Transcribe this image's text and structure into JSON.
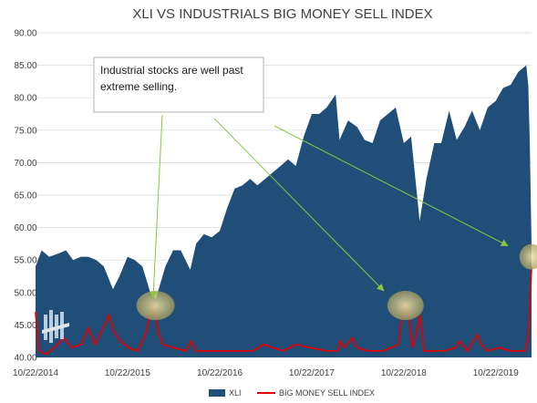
{
  "chart_data": {
    "type": "area",
    "title": "XLI VS INDUSTRIALS BIG MONEY SELL INDEX",
    "xlabel": "",
    "ylabel": "",
    "ylim": [
      40,
      90
    ],
    "y_ticks": [
      "40.00",
      "45.00",
      "50.00",
      "55.00",
      "60.00",
      "65.00",
      "70.00",
      "75.00",
      "80.00",
      "85.00",
      "90.00"
    ],
    "x_ticks": [
      "10/22/2014",
      "10/22/2015",
      "10/22/2016",
      "10/22/2017",
      "10/22/2018",
      "10/22/2019"
    ],
    "grid": true,
    "legend_position": "bottom",
    "annotation": "Industrial stocks are well past extreme selling.",
    "series": [
      {
        "name": "XLI",
        "kind": "area",
        "color": "#1f4e79",
        "x": [
          "2014-10-22",
          "2014-11-15",
          "2014-12-15",
          "2015-01-20",
          "2015-02-20",
          "2015-03-20",
          "2015-04-20",
          "2015-05-20",
          "2015-06-20",
          "2015-07-20",
          "2015-08-25",
          "2015-09-20",
          "2015-10-22",
          "2015-11-20",
          "2015-12-20",
          "2016-01-20",
          "2016-02-11",
          "2016-03-20",
          "2016-04-20",
          "2016-05-20",
          "2016-06-27",
          "2016-07-20",
          "2016-08-20",
          "2016-09-20",
          "2016-10-22",
          "2016-11-20",
          "2016-12-20",
          "2017-01-20",
          "2017-02-20",
          "2017-03-20",
          "2017-04-20",
          "2017-05-20",
          "2017-06-20",
          "2017-07-20",
          "2017-08-20",
          "2017-09-20",
          "2017-10-22",
          "2017-11-20",
          "2017-12-20",
          "2018-01-25",
          "2018-02-09",
          "2018-03-15",
          "2018-04-20",
          "2018-05-20",
          "2018-06-20",
          "2018-07-20",
          "2018-08-20",
          "2018-09-20",
          "2018-10-22",
          "2018-11-20",
          "2018-12-24",
          "2019-01-20",
          "2019-02-20",
          "2019-03-20",
          "2019-04-20",
          "2019-05-20",
          "2019-06-20",
          "2019-07-20",
          "2019-08-20",
          "2019-09-20",
          "2019-10-22",
          "2019-11-20",
          "2019-12-20",
          "2020-01-20",
          "2020-02-20",
          "2020-02-28",
          "2020-03-05",
          "2020-03-12"
        ],
        "values": [
          54.0,
          56.5,
          55.5,
          56.0,
          56.5,
          55.0,
          55.5,
          55.5,
          55.0,
          54.0,
          50.5,
          52.5,
          55.5,
          55.0,
          54.0,
          50.0,
          49.0,
          54.0,
          56.5,
          56.5,
          53.5,
          57.5,
          59.0,
          58.5,
          59.5,
          63.0,
          66.0,
          66.5,
          67.5,
          66.5,
          67.5,
          68.5,
          69.5,
          70.5,
          69.5,
          74.0,
          77.5,
          77.5,
          78.5,
          80.5,
          73.5,
          76.5,
          75.5,
          73.5,
          73.0,
          76.5,
          77.5,
          78.5,
          73.0,
          74.0,
          61.0,
          67.5,
          73.0,
          73.0,
          78.0,
          73.5,
          75.5,
          78.0,
          75.0,
          78.5,
          79.5,
          81.5,
          82.0,
          84.0,
          85.0,
          82.0,
          73.0,
          57.5
        ]
      },
      {
        "name": "BIG MONEY SELL INDEX",
        "kind": "line",
        "color": "#e00000",
        "x": [
          "2014-10-22",
          "2014-11-05",
          "2014-12-01",
          "2015-01-05",
          "2015-02-10",
          "2015-03-15",
          "2015-04-20",
          "2015-05-20",
          "2015-06-15",
          "2015-07-10",
          "2015-08-10",
          "2015-08-28",
          "2015-09-25",
          "2015-10-25",
          "2015-12-01",
          "2016-01-05",
          "2016-01-20",
          "2016-02-05",
          "2016-02-20",
          "2016-03-10",
          "2016-04-20",
          "2016-06-10",
          "2016-06-30",
          "2016-07-20",
          "2016-09-01",
          "2016-10-22",
          "2016-12-15",
          "2017-03-01",
          "2017-04-15",
          "2017-05-20",
          "2017-07-01",
          "2017-08-20",
          "2017-10-15",
          "2017-12-20",
          "2018-02-01",
          "2018-02-12",
          "2018-02-28",
          "2018-04-01",
          "2018-04-20",
          "2018-06-01",
          "2018-08-01",
          "2018-10-01",
          "2018-10-15",
          "2018-10-29",
          "2018-11-10",
          "2018-11-25",
          "2018-12-10",
          "2018-12-25",
          "2019-01-10",
          "2019-02-20",
          "2019-04-01",
          "2019-05-15",
          "2019-06-01",
          "2019-07-01",
          "2019-08-10",
          "2019-08-25",
          "2019-09-20",
          "2019-11-01",
          "2019-12-20",
          "2020-01-20",
          "2020-02-15",
          "2020-02-28",
          "2020-03-12"
        ],
        "values": [
          47.0,
          41.0,
          40.5,
          41.5,
          43.0,
          41.5,
          42.0,
          44.5,
          42.0,
          44.0,
          46.5,
          44.0,
          42.5,
          41.5,
          41.0,
          44.0,
          47.0,
          48.0,
          44.0,
          42.0,
          41.5,
          41.0,
          42.5,
          41.0,
          41.0,
          41.0,
          41.0,
          41.0,
          42.0,
          41.5,
          41.0,
          42.0,
          41.5,
          41.0,
          41.0,
          42.5,
          41.5,
          43.0,
          41.5,
          41.0,
          41.0,
          42.0,
          46.5,
          48.0,
          47.0,
          41.5,
          43.5,
          46.5,
          41.0,
          41.0,
          41.0,
          41.5,
          42.5,
          41.0,
          43.5,
          42.0,
          41.0,
          41.5,
          41.0,
          41.0,
          41.0,
          43.0,
          54.0
        ]
      }
    ]
  },
  "legend": {
    "xli": "XLI",
    "bmsi": "BIG MONEY SELL INDEX"
  },
  "colors": {
    "xli": "#1f4e79",
    "bmsi": "#e00000",
    "highlight": "#9a8a4a",
    "arrow": "#8cc63f"
  }
}
